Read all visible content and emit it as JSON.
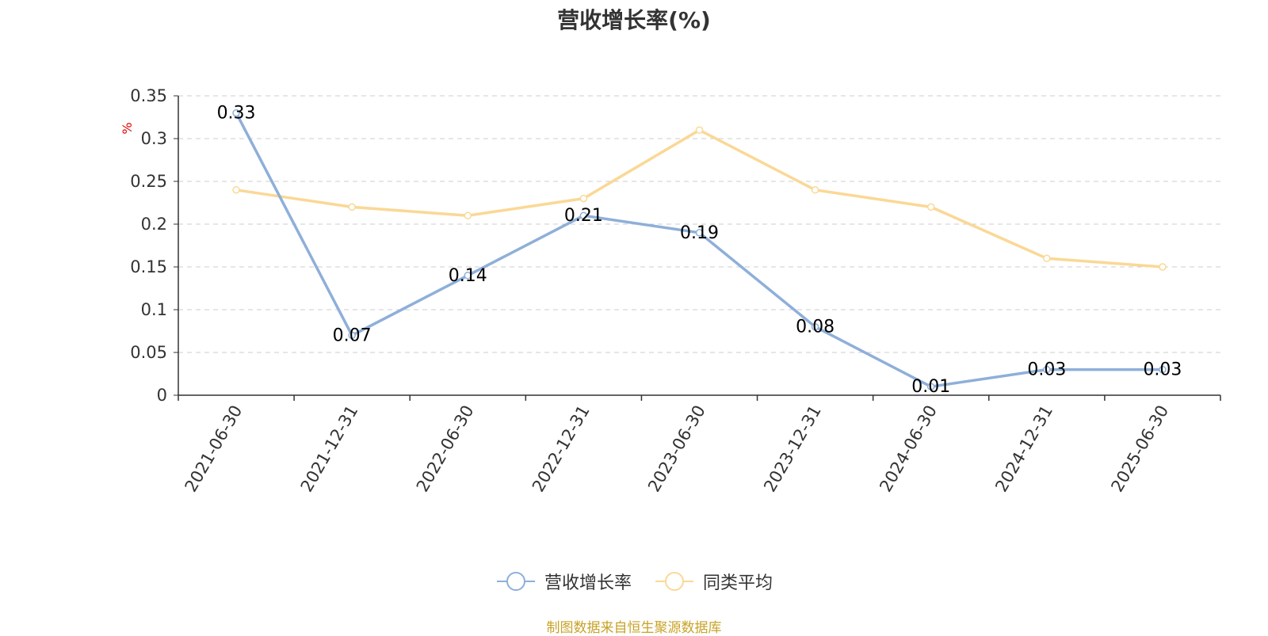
{
  "title": "营收增长率(%)",
  "footer": "制图数据来自恒生聚源数据库",
  "colors": {
    "series1": "#8eafd9",
    "series2": "#fad895",
    "grid": "#cccccc",
    "axis": "#333333",
    "unit": "#e60000",
    "footer": "#c9a227"
  },
  "chart_data": {
    "type": "line",
    "title": "营收增长率(%)",
    "ylabel": "%",
    "ylim": [
      0,
      0.35
    ],
    "yticks": [
      "0",
      "0.05",
      "0.1",
      "0.15",
      "0.2",
      "0.25",
      "0.3",
      "0.35"
    ],
    "categories": [
      "2021-06-30",
      "2021-12-31",
      "2022-06-30",
      "2022-12-31",
      "2023-06-30",
      "2023-12-31",
      "2024-06-30",
      "2024-12-31",
      "2025-06-30"
    ],
    "series": [
      {
        "name": "营收增长率",
        "values": [
          0.33,
          0.07,
          0.14,
          0.21,
          0.19,
          0.08,
          0.01,
          0.03,
          0.03
        ],
        "labels": [
          "0.33",
          "0.07",
          "0.14",
          "0.21",
          "0.19",
          "0.08",
          "0.01",
          "0.03",
          "0.03"
        ]
      },
      {
        "name": "同类平均",
        "values": [
          0.24,
          0.22,
          0.21,
          0.23,
          0.31,
          0.24,
          0.22,
          0.16,
          0.15
        ]
      }
    ],
    "grid": true,
    "legend": "bottom-center"
  }
}
